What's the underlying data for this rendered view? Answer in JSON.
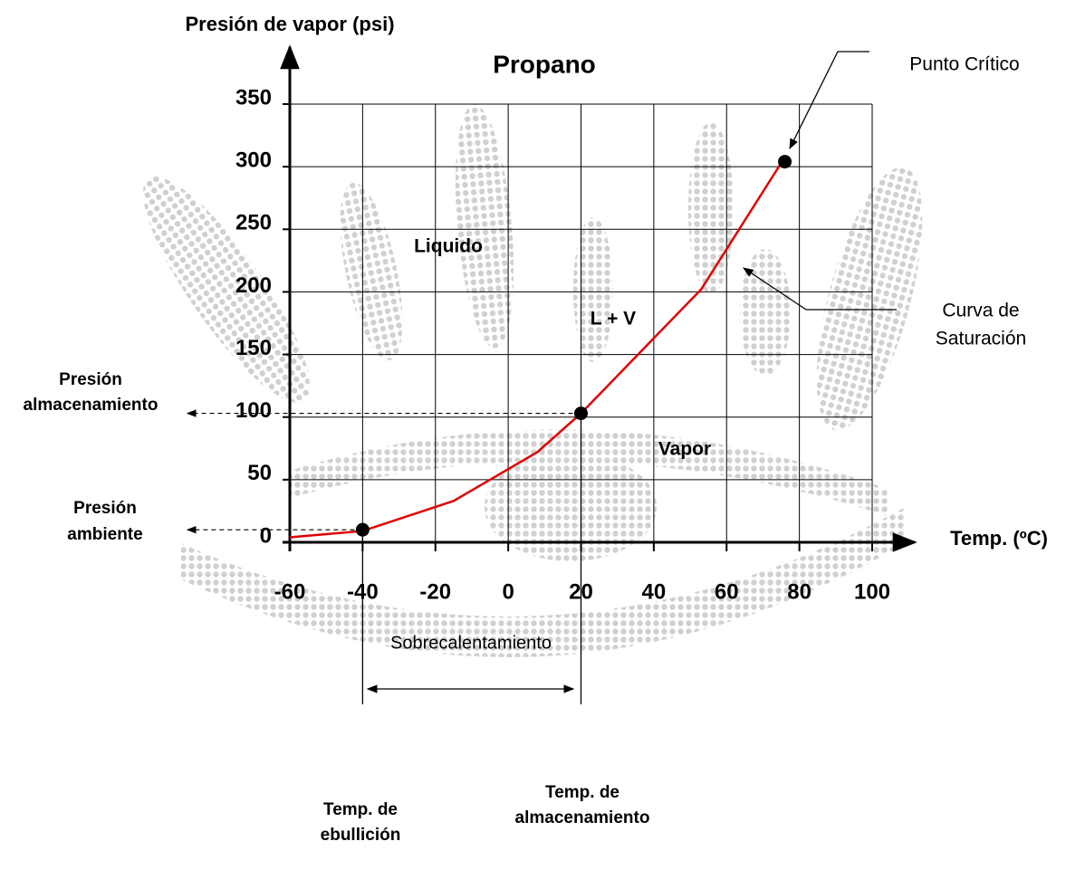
{
  "chart_data": {
    "type": "line",
    "title": "Propano",
    "y_label": "Presión de vapor (psi)",
    "x_label": "Temp. (ºC)",
    "xlim": [
      -60,
      100
    ],
    "ylim": [
      0,
      350
    ],
    "xticks": [
      -60,
      -40,
      -20,
      0,
      20,
      40,
      60,
      80,
      100
    ],
    "yticks": [
      0,
      50,
      100,
      150,
      200,
      250,
      300,
      350
    ],
    "grid": true,
    "series": [
      {
        "color": "#e00000",
        "x": [
          -60,
          -40,
          -15,
          8,
          20,
          30,
          53,
          75
        ],
        "values": [
          4,
          9,
          33,
          72,
          103,
          133,
          202,
          303
        ]
      }
    ],
    "points": {
      "color": "#000000",
      "x": [
        -40,
        20,
        76
      ],
      "values": [
        10,
        103,
        304
      ]
    },
    "annotations": {
      "liquid": "Liquido",
      "mix": "L + V",
      "vapor": "Vapor",
      "critical": "Punto Crítico",
      "saturation": [
        "Curva de",
        "Saturación"
      ],
      "storage_pressure": [
        "Presión",
        "almacenamiento"
      ],
      "ambient_pressure": [
        "Presión",
        "ambiente"
      ],
      "boiling_temp": [
        "Temp. de",
        "ebullición"
      ],
      "storage_temp": [
        "Temp. de",
        "almacenamiento"
      ],
      "superheat": "Sobrecalentamiento"
    }
  }
}
